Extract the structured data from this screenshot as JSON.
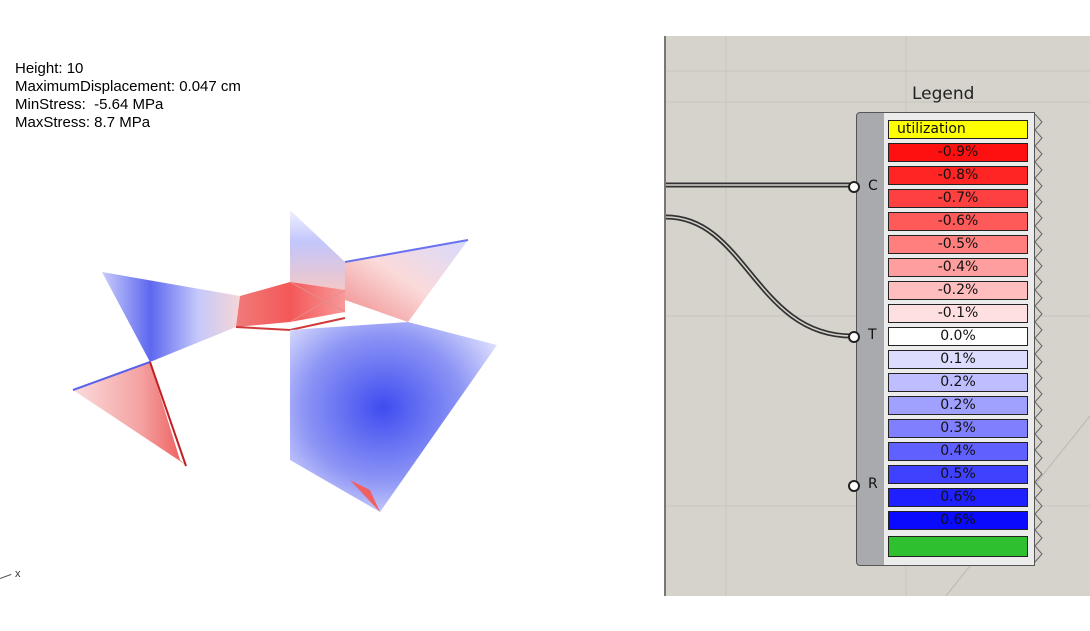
{
  "viewport": {
    "info": {
      "height": "Height: 10",
      "max_displacement": "MaximumDisplacement: 0.047 cm",
      "min_stress": "MinStress:  -5.64 MPa",
      "max_stress": "MaxStress: 8.7 MPa"
    },
    "axis_label": "x"
  },
  "legend": {
    "title": "Legend",
    "ports": {
      "c": "C",
      "t": "T",
      "r": "R"
    },
    "header": {
      "label": "utilization",
      "color": "#ffff00"
    },
    "rows": [
      {
        "label": "-0.9%",
        "color": "#ff1010"
      },
      {
        "label": "-0.8%",
        "color": "#ff2525"
      },
      {
        "label": "-0.7%",
        "color": "#ff4040"
      },
      {
        "label": "-0.6%",
        "color": "#ff5a5a"
      },
      {
        "label": "-0.5%",
        "color": "#ff7f7f"
      },
      {
        "label": "-0.4%",
        "color": "#ff9e9e"
      },
      {
        "label": "-0.2%",
        "color": "#ffbdbd"
      },
      {
        "label": "-0.1%",
        "color": "#ffe0e0"
      },
      {
        "label": "0.0%",
        "color": "#ffffff"
      },
      {
        "label": "0.1%",
        "color": "#dcdcff"
      },
      {
        "label": "0.2%",
        "color": "#bdbdff"
      },
      {
        "label": "0.2%",
        "color": "#a0a0ff"
      },
      {
        "label": "0.3%",
        "color": "#8080ff"
      },
      {
        "label": "0.4%",
        "color": "#6060ff"
      },
      {
        "label": "0.5%",
        "color": "#4040ff"
      },
      {
        "label": "0.6%",
        "color": "#2020ff"
      },
      {
        "label": "0.6%",
        "color": "#0a0aff"
      }
    ],
    "footer": {
      "color": "#2ec02e"
    }
  }
}
